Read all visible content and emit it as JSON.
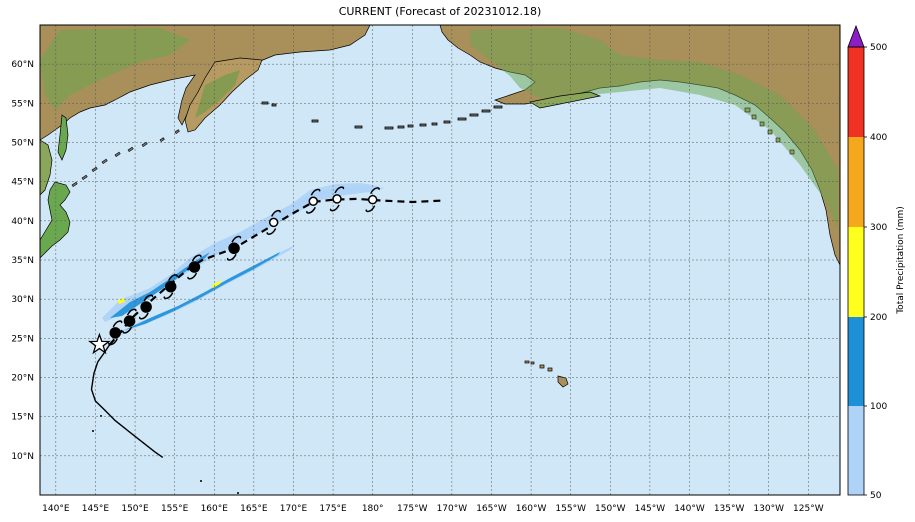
{
  "title": "CURRENT (Forecast of 20231012.18)",
  "lon_labels": [
    "140°E",
    "145°E",
    "150°E",
    "155°E",
    "160°E",
    "165°E",
    "170°E",
    "175°E",
    "180°",
    "175°W",
    "170°W",
    "165°W",
    "160°W",
    "155°W",
    "150°W",
    "145°W",
    "140°W",
    "135°W",
    "130°W",
    "125°W"
  ],
  "lon_values": [
    140,
    145,
    150,
    155,
    160,
    165,
    170,
    175,
    180,
    185,
    190,
    195,
    200,
    205,
    210,
    215,
    220,
    225,
    230,
    235
  ],
  "lat_labels": [
    "10°N",
    "15°N",
    "20°N",
    "25°N",
    "30°N",
    "35°N",
    "40°N",
    "45°N",
    "50°N",
    "55°N",
    "60°N"
  ],
  "lat_values": [
    10,
    15,
    20,
    25,
    30,
    35,
    40,
    45,
    50,
    55,
    60
  ],
  "extent": {
    "lon_min": 138,
    "lon_max": 239,
    "lat_min": 5,
    "lat_max": 65
  },
  "colorbar": {
    "label": "Total Precipitation (mm)",
    "ticks": [
      "50",
      "100",
      "200",
      "300",
      "400",
      "500"
    ],
    "colors": [
      "#aed3f7",
      "#1e90d8",
      "#ffff1e",
      "#f5a81e",
      "#f03222",
      "#8c1ec8"
    ]
  },
  "colors": {
    "ocean": "#d0e7f7",
    "grid": "#555555",
    "track": "#000000"
  },
  "track_observed": [
    [
      153.5,
      9.8
    ],
    [
      152.5,
      10.5
    ],
    [
      150.0,
      12.5
    ],
    [
      147.5,
      14.5
    ],
    [
      146.0,
      16.0
    ],
    [
      145.0,
      17.0
    ],
    [
      144.5,
      18.5
    ],
    [
      144.8,
      20.5
    ],
    [
      145.3,
      22.0
    ],
    [
      146.0,
      23.0
    ],
    [
      146.8,
      24.2
    ]
  ],
  "track_forecast": [
    [
      146.8,
      24.2
    ],
    [
      148.2,
      25.8
    ],
    [
      149.4,
      27.4
    ],
    [
      151.2,
      29.1
    ],
    [
      154.2,
      31.7
    ],
    [
      156.8,
      33.9
    ],
    [
      158.5,
      35.0
    ],
    [
      162.5,
      36.5
    ],
    [
      167.0,
      39.2
    ],
    [
      170.0,
      41.0
    ],
    [
      172.5,
      42.4
    ],
    [
      175.0,
      42.7
    ],
    [
      178.0,
      42.8
    ],
    [
      181.0,
      42.6
    ],
    [
      185.0,
      42.4
    ],
    [
      189.0,
      42.6
    ]
  ],
  "storm_symbols": [
    {
      "lon": 147.5,
      "lat": 25.7,
      "type": "typhoon-filled"
    },
    {
      "lon": 149.3,
      "lat": 27.2,
      "type": "typhoon-filled"
    },
    {
      "lon": 151.4,
      "lat": 29.0,
      "type": "typhoon-filled"
    },
    {
      "lon": 154.5,
      "lat": 31.6,
      "type": "typhoon-filled"
    },
    {
      "lon": 157.5,
      "lat": 34.1,
      "type": "typhoon-filled"
    },
    {
      "lon": 162.5,
      "lat": 36.5,
      "type": "typhoon-filled"
    },
    {
      "lon": 167.5,
      "lat": 39.8,
      "type": "typhoon-open"
    },
    {
      "lon": 172.5,
      "lat": 42.5,
      "type": "typhoon-open"
    },
    {
      "lon": 175.5,
      "lat": 42.8,
      "type": "typhoon-open"
    },
    {
      "lon": 180.0,
      "lat": 42.7,
      "type": "typhoon-open"
    }
  ],
  "current_position": {
    "lon": 145.5,
    "lat": 24.2,
    "icon": "star-icon"
  }
}
